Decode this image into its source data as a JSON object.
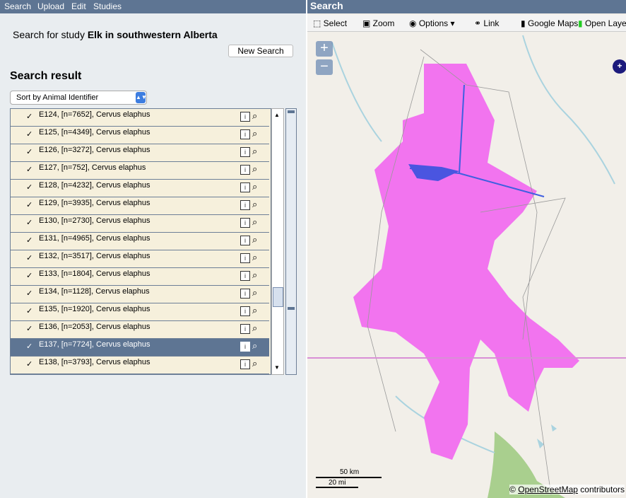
{
  "menu": [
    "Search",
    "Upload",
    "Edit",
    "Studies"
  ],
  "search_prefix": "Search for study",
  "study_name": "Elk in southwestern Alberta",
  "new_search_button": "New Search",
  "result_heading": "Search result",
  "sort_select": "Sort by Animal Identifier",
  "rows": [
    "E124, [n=7652], Cervus elaphus",
    "E125, [n=4349], Cervus elaphus",
    "E126, [n=3272], Cervus elaphus",
    "E127, [n=752], Cervus elaphus",
    "E128, [n=4232], Cervus elaphus",
    "E129, [n=3935], Cervus elaphus",
    "E130, [n=2730], Cervus elaphus",
    "E131, [n=4965], Cervus elaphus",
    "E132, [n=3517], Cervus elaphus",
    "E133, [n=1804], Cervus elaphus",
    "E134, [n=1128], Cervus elaphus",
    "E135, [n=1920], Cervus elaphus",
    "E136, [n=2053], Cervus elaphus",
    "E137, [n=7724], Cervus elaphus",
    "E138, [n=3793], Cervus elaphus"
  ],
  "map_panel": {
    "title": "Search",
    "toolbar": [
      "Select",
      "Zoom",
      "Options",
      "Link",
      "Google Maps",
      "Open Layers"
    ],
    "scale": [
      "50 km",
      "20 mi"
    ],
    "attribution_prefix": "©",
    "attribution_link": "OpenStreetMap",
    "attribution_suffix": "contributors"
  }
}
